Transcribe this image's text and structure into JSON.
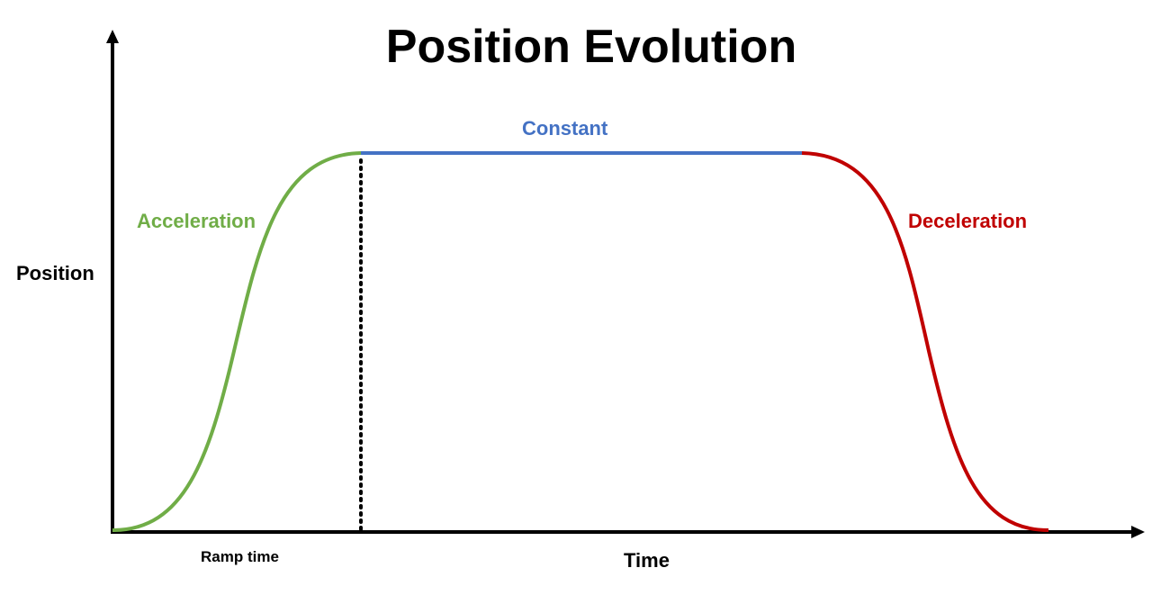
{
  "title": "Position Evolution",
  "axes": {
    "y_label": "Position",
    "x_label": "Time",
    "ramp_label": "Ramp time"
  },
  "phases": [
    {
      "id": "acceleration",
      "label": "Acceleration",
      "color": "#70ad47"
    },
    {
      "id": "constant",
      "label": "Constant",
      "color": "#4472c4"
    },
    {
      "id": "deceleration",
      "label": "Deceleration",
      "color": "#c00000"
    }
  ],
  "colors": {
    "axis": "#000000",
    "ramp_marker": "#000000"
  }
}
